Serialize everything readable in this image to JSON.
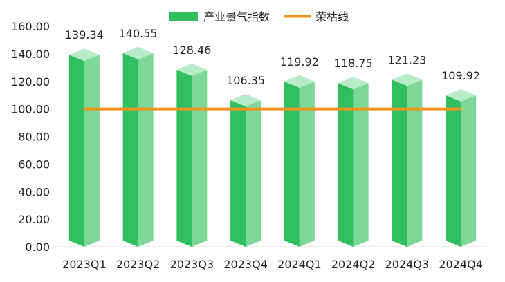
{
  "chart_data": {
    "type": "bar",
    "title": "",
    "xlabel": "",
    "ylabel": "",
    "categories": [
      "2023Q1",
      "2023Q2",
      "2023Q3",
      "2023Q4",
      "2024Q1",
      "2024Q2",
      "2024Q3",
      "2024Q4"
    ],
    "series": [
      {
        "name": "产业景气指数",
        "type": "bar",
        "values": [
          139.34,
          140.55,
          128.46,
          106.35,
          119.92,
          118.75,
          121.23,
          109.92
        ],
        "value_labels": [
          "139.34",
          "140.55",
          "128.46",
          "106.35",
          "119.92",
          "118.75",
          "121.23",
          "109.92"
        ],
        "color": "#2fbf5f"
      },
      {
        "name": "荣枯线",
        "type": "line",
        "values": [
          100,
          100,
          100,
          100,
          100,
          100,
          100,
          100
        ],
        "color": "#f0921e"
      }
    ],
    "ylim": [
      0,
      160
    ],
    "yticks": [
      "0.00",
      "20.00",
      "40.00",
      "60.00",
      "80.00",
      "100.00",
      "120.00",
      "140.00",
      "160.00"
    ],
    "grid": false,
    "legend": "top-center",
    "style": "3d-bars"
  },
  "colors": {
    "bar_front": "#2fbf5f",
    "bar_side": "#7dd898",
    "bar_top": "#b8ebc8",
    "line": "#f0921e",
    "axis": "#d9d9d9"
  }
}
